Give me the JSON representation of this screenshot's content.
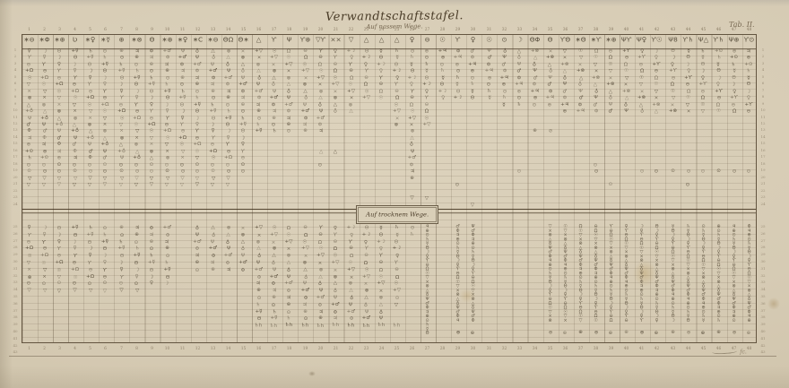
{
  "document": {
    "title": "Verwandtschaftstafel.",
    "title_sub": "Auf nassem Wege.",
    "lower_section_label": "Auf trocknem Wege.",
    "plate_label": "Tab. II.",
    "engraver_mark": "fc."
  },
  "colors": {
    "paper": "#d6cbb4",
    "ink": "#4a3c28",
    "grid_line": "#7a6a50",
    "stain": "#b99a5e"
  },
  "table": {
    "column_numbers_top": [
      "1",
      "2",
      "3",
      "4",
      "5",
      "6",
      "7",
      "8",
      "9",
      "10",
      "11",
      "12",
      "13",
      "14",
      "15",
      "16",
      "17",
      "18",
      "19",
      "20",
      "21",
      "22",
      "23",
      "24",
      "25",
      "26",
      "27",
      "28",
      "29",
      "30",
      "31",
      "32",
      "33",
      "34",
      "35",
      "36",
      "37",
      "38",
      "39",
      "40",
      "41",
      "42",
      "43",
      "44",
      "45",
      "46",
      "47",
      "48"
    ],
    "column_numbers_bottom": [
      "1",
      "2",
      "3",
      "4",
      "5",
      "6",
      "7",
      "8",
      "9",
      "10",
      "11",
      "12",
      "13",
      "14",
      "15",
      "16",
      "17",
      "18",
      "19",
      "20",
      "21",
      "22",
      "23",
      "24",
      "25",
      "26",
      "27",
      "28",
      "29",
      "30",
      "31",
      "32",
      "33",
      "34",
      "35",
      "36",
      "37",
      "38",
      "39",
      "40",
      "41",
      "42",
      "43",
      "44",
      "45",
      "46",
      "47",
      "48"
    ],
    "row_numbers_upper": [
      "1",
      "2",
      "3",
      "4",
      "5",
      "6",
      "7",
      "8",
      "9",
      "10",
      "11",
      "12",
      "13",
      "14",
      "15",
      "16",
      "17",
      "18",
      "19",
      "20",
      "21",
      "22",
      "23",
      "24"
    ],
    "row_numbers_lower": [
      "25",
      "26",
      "27",
      "28",
      "29",
      "30",
      "31",
      "32",
      "33",
      "34",
      "35",
      "36",
      "37",
      "38",
      "39",
      "40",
      "41",
      "42",
      "43"
    ],
    "header_symbols": [
      "∗⊖",
      "∗Φ",
      "∗⊕",
      "Ʋ",
      "∗♀",
      "∗☿",
      "⊕",
      "∗⊗",
      "Θ",
      "∗⊕",
      "∗♀",
      "∗C",
      "∗⊖",
      "ΘΩ",
      "Θ∗",
      "△",
      "Ƴ",
      "Ψ",
      "Ƴ⊕",
      "▽Ƴ",
      "××",
      "▽",
      "△",
      "△",
      "△",
      "♀",
      "⊖",
      "☉",
      "Ƴ",
      "♀",
      "☉",
      "⊙",
      "☽",
      "ΘΦ",
      "Θ",
      "ƳΘ",
      "∗Θ",
      "∗Ƴ",
      "∗⊕",
      "ΨƳ",
      "Ψ♀",
      "Ƴ☉",
      "Ψ8",
      "Ƴ♄",
      "Ψ△",
      "Ƴ♄",
      "Ψ⊕",
      "Ƴ⊙"
    ]
  },
  "symbols": {
    "palette": [
      "♀",
      "☿",
      "⊕",
      "♂",
      "△",
      "▽",
      "⊖",
      "☽",
      "♄",
      "♃",
      "Ψ",
      "⊗",
      "☉",
      "Ƴ",
      "Θ",
      "⊙",
      "Φ",
      "♁",
      "×",
      "Ω"
    ],
    "upper_fills": [
      {
        "c1": 1,
        "c2": 15,
        "r1": 1,
        "r2": 17,
        "style": "cells"
      },
      {
        "c1": 1,
        "c2": 15,
        "r1": 18,
        "r2": 19,
        "style": "cells",
        "glyph": "⊙"
      },
      {
        "c1": 1,
        "c2": 14,
        "r1": 20,
        "r2": 21,
        "style": "cells",
        "glyph": "▽"
      },
      {
        "c1": 16,
        "c2": 20,
        "r1": 1,
        "r2": 13,
        "style": "cells"
      },
      {
        "c1": 21,
        "c2": 22,
        "r1": 1,
        "r2": 10,
        "style": "cells"
      },
      {
        "c1": 23,
        "c2": 24,
        "r1": 1,
        "r2": 8,
        "style": "cells"
      },
      {
        "c1": 25,
        "c2": 25,
        "r1": 1,
        "r2": 12,
        "style": "cells"
      },
      {
        "c1": 26,
        "c2": 26,
        "r1": 1,
        "r2": 20,
        "style": "cells"
      },
      {
        "c1": 27,
        "c2": 27,
        "r1": 1,
        "r2": 12,
        "style": "cells"
      },
      {
        "c1": 28,
        "c2": 31,
        "r1": 1,
        "r2": 8,
        "style": "cells"
      },
      {
        "c1": 32,
        "c2": 35,
        "r1": 1,
        "r2": 9,
        "style": "cells"
      },
      {
        "c1": 36,
        "c2": 48,
        "r1": 1,
        "r2": 10,
        "style": "cells"
      }
    ],
    "upper_singles": [
      {
        "c": 20,
        "r": 16,
        "g": "△"
      },
      {
        "c": 21,
        "r": 16,
        "g": "△"
      },
      {
        "c": 20,
        "r": 18,
        "g": "⊙"
      },
      {
        "c": 26,
        "r": 23,
        "g": "▽"
      },
      {
        "c": 27,
        "r": 23,
        "g": "▽"
      },
      {
        "c": 29,
        "r": 21,
        "g": "⊙"
      },
      {
        "c": 30,
        "r": 24,
        "g": "▽"
      },
      {
        "c": 33,
        "r": 19,
        "g": "⊙"
      },
      {
        "c": 34,
        "r": 13,
        "g": "⊕"
      },
      {
        "c": 35,
        "r": 13,
        "g": "⊘"
      },
      {
        "c": 38,
        "r": 18,
        "g": "⊙"
      },
      {
        "c": 38,
        "r": 19,
        "g": "⊙"
      },
      {
        "c": 39,
        "r": 21,
        "g": "⊙"
      },
      {
        "c": 44,
        "r": 21,
        "g": "⊙"
      },
      {
        "c": 41,
        "r": 19,
        "g": "⊙"
      },
      {
        "c": 42,
        "r": 19,
        "g": "⊙"
      },
      {
        "c": 43,
        "r": 19,
        "g": "⊙"
      },
      {
        "c": 44,
        "r": 19,
        "g": "⊙"
      },
      {
        "c": 45,
        "r": 19,
        "g": "⊙"
      },
      {
        "c": 46,
        "r": 19,
        "g": "⊙"
      },
      {
        "c": 47,
        "r": 19,
        "g": "⊙"
      },
      {
        "c": 48,
        "r": 19,
        "g": "⊙"
      }
    ],
    "lower_fills": [
      {
        "c1": 1,
        "c2": 8,
        "r1": 1,
        "r2": 8,
        "style": "cells"
      },
      {
        "c1": 1,
        "c2": 8,
        "r1": 9,
        "r2": 9,
        "style": "cells",
        "glyph": "⊙"
      },
      {
        "c1": 1,
        "c2": 8,
        "r1": 10,
        "r2": 10,
        "style": "cells",
        "glyph": "▽"
      },
      {
        "c1": 9,
        "c2": 10,
        "r1": 1,
        "r2": 9,
        "style": "cells"
      },
      {
        "c1": 12,
        "c2": 15,
        "r1": 1,
        "r2": 7,
        "style": "cells"
      },
      {
        "c1": 16,
        "c2": 24,
        "r1": 1,
        "r2": 14,
        "style": "cells"
      },
      {
        "c1": 25,
        "c2": 25,
        "r1": 1,
        "r2": 10,
        "style": "cells"
      },
      {
        "c1": 26,
        "c2": 26,
        "r1": 1,
        "r2": 2,
        "style": "cells"
      },
      {
        "c1": 27,
        "c2": 27,
        "r1": 1,
        "r2": 16,
        "style": "chain"
      },
      {
        "c1": 29,
        "c2": 30,
        "r1": 1,
        "r2": 14,
        "style": "chain"
      },
      {
        "c1": 35,
        "c2": 48,
        "r1": 1,
        "r2": 14,
        "style": "chain"
      }
    ],
    "lower_singles": [
      {
        "c": 16,
        "r": 15,
        "g": "♄h"
      },
      {
        "c": 17,
        "r": 15,
        "g": "♄h"
      },
      {
        "c": 18,
        "r": 15,
        "g": "♄h"
      },
      {
        "c": 19,
        "r": 15,
        "g": "♄h"
      },
      {
        "c": 20,
        "r": 15,
        "g": "♄h"
      },
      {
        "c": 21,
        "r": 15,
        "g": "♄h"
      },
      {
        "c": 22,
        "r": 15,
        "g": "♄h"
      },
      {
        "c": 23,
        "r": 15,
        "g": "♄h"
      },
      {
        "c": 24,
        "r": 15,
        "g": "♄h"
      },
      {
        "c": 25,
        "r": 15,
        "g": "♄h"
      },
      {
        "c": 25,
        "r": 11,
        "g": "⊙"
      },
      {
        "c": 25,
        "r": 12,
        "g": "▽"
      },
      {
        "c": 29,
        "r": 16,
        "g": "⊕"
      },
      {
        "c": 30,
        "r": 16,
        "g": "⊕"
      },
      {
        "c": 35,
        "r": 16,
        "g": "⊕"
      },
      {
        "c": 36,
        "r": 16,
        "g": "⊕"
      },
      {
        "c": 37,
        "r": 16,
        "g": "⊕"
      },
      {
        "c": 38,
        "r": 16,
        "g": "⊕"
      },
      {
        "c": 39,
        "r": 16,
        "g": "⊕"
      },
      {
        "c": 40,
        "r": 16,
        "g": "⊕"
      },
      {
        "c": 41,
        "r": 16,
        "g": "⊕"
      },
      {
        "c": 42,
        "r": 16,
        "g": "⊕"
      },
      {
        "c": 43,
        "r": 16,
        "g": "⊕"
      },
      {
        "c": 44,
        "r": 16,
        "g": "⊕"
      },
      {
        "c": 45,
        "r": 16,
        "g": "⊕"
      },
      {
        "c": 46,
        "r": 16,
        "g": "⊕"
      },
      {
        "c": 47,
        "r": 16,
        "g": "⊕"
      },
      {
        "c": 48,
        "r": 16,
        "g": "⊕"
      }
    ]
  }
}
